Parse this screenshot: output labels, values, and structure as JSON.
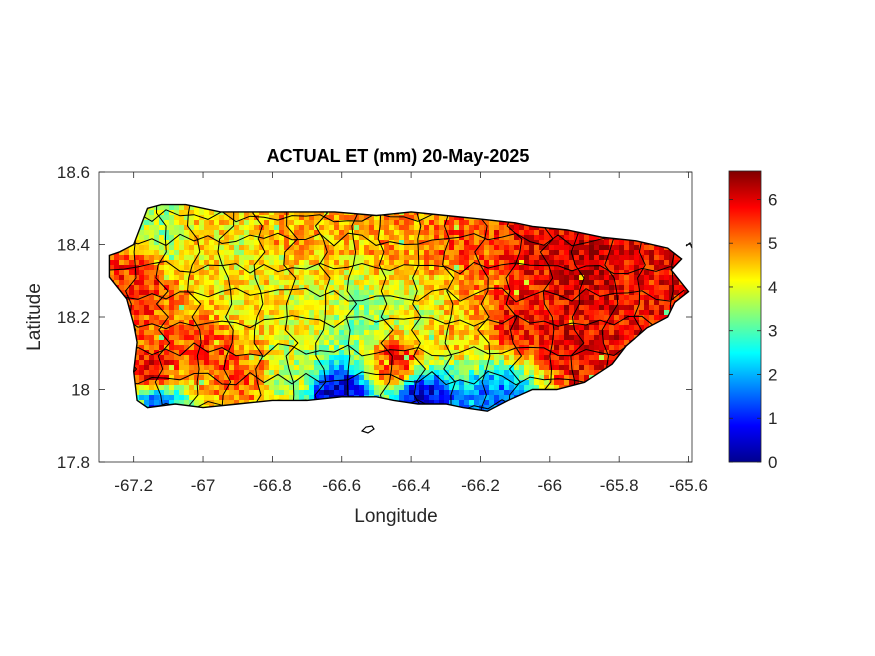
{
  "chart_data": {
    "type": "heatmap",
    "title": "ACTUAL ET (mm) 20-May-2025",
    "xlabel": "Longitude",
    "ylabel": "Latitude",
    "xlim": [
      -67.3,
      -65.59
    ],
    "ylim": [
      17.8,
      18.6
    ],
    "x_ticks": [
      -67.2,
      -67,
      -66.8,
      -66.6,
      -66.4,
      -66.2,
      -66,
      -65.8,
      -65.6
    ],
    "x_tick_labels": [
      "-67.2",
      "-67",
      "-66.8",
      "-66.6",
      "-66.4",
      "-66.2",
      "-66",
      "-65.8",
      "-65.6"
    ],
    "y_ticks": [
      17.8,
      18,
      18.2,
      18.4,
      18.6
    ],
    "y_tick_labels": [
      "17.8",
      "18",
      "18.2",
      "18.4",
      "18.6"
    ],
    "colorbar": {
      "colormap": "jet",
      "range": [
        0,
        6.65
      ],
      "ticks": [
        0,
        1,
        2,
        3,
        4,
        5,
        6
      ],
      "tick_labels": [
        "0",
        "1",
        "2",
        "3",
        "4",
        "5",
        "6"
      ]
    },
    "region": "Puerto Rico",
    "outline": [
      [
        -67.27,
        18.37
      ],
      [
        -67.24,
        18.38
      ],
      [
        -67.2,
        18.4
      ],
      [
        -67.18,
        18.45
      ],
      [
        -67.16,
        18.5
      ],
      [
        -67.12,
        18.51
      ],
      [
        -67.05,
        18.51
      ],
      [
        -66.95,
        18.49
      ],
      [
        -66.85,
        18.49
      ],
      [
        -66.75,
        18.49
      ],
      [
        -66.62,
        18.49
      ],
      [
        -66.5,
        18.48
      ],
      [
        -66.4,
        18.49
      ],
      [
        -66.3,
        18.48
      ],
      [
        -66.2,
        18.47
      ],
      [
        -66.1,
        18.46
      ],
      [
        -66.05,
        18.45
      ],
      [
        -65.95,
        18.44
      ],
      [
        -65.85,
        18.42
      ],
      [
        -65.75,
        18.41
      ],
      [
        -65.66,
        18.39
      ],
      [
        -65.62,
        18.36
      ],
      [
        -65.65,
        18.33
      ],
      [
        -65.6,
        18.27
      ],
      [
        -65.64,
        18.24
      ],
      [
        -65.66,
        18.2
      ],
      [
        -65.72,
        18.17
      ],
      [
        -65.78,
        18.12
      ],
      [
        -65.82,
        18.07
      ],
      [
        -65.9,
        18.02
      ],
      [
        -65.98,
        18.0
      ],
      [
        -66.05,
        18.0
      ],
      [
        -66.12,
        17.97
      ],
      [
        -66.18,
        17.94
      ],
      [
        -66.25,
        17.95
      ],
      [
        -66.3,
        17.96
      ],
      [
        -66.38,
        17.96
      ],
      [
        -66.45,
        17.97
      ],
      [
        -66.5,
        17.98
      ],
      [
        -66.6,
        17.98
      ],
      [
        -66.7,
        17.97
      ],
      [
        -66.8,
        17.97
      ],
      [
        -66.9,
        17.96
      ],
      [
        -67.0,
        17.95
      ],
      [
        -67.08,
        17.96
      ],
      [
        -67.16,
        17.95
      ],
      [
        -67.19,
        17.97
      ],
      [
        -67.2,
        18.05
      ],
      [
        -67.19,
        18.13
      ],
      [
        -67.2,
        18.18
      ],
      [
        -67.22,
        18.25
      ],
      [
        -67.27,
        18.31
      ]
    ],
    "et_field_samples": [
      {
        "lon": -67.2,
        "lat": 18.3,
        "et": 5.6
      },
      {
        "lon": -67.12,
        "lat": 18.45,
        "et": 3.6
      },
      {
        "lon": -67.0,
        "lat": 18.44,
        "et": 4.4
      },
      {
        "lon": -66.9,
        "lat": 18.42,
        "et": 4.0
      },
      {
        "lon": -66.8,
        "lat": 18.45,
        "et": 4.8
      },
      {
        "lon": -66.65,
        "lat": 18.45,
        "et": 4.6
      },
      {
        "lon": -66.45,
        "lat": 18.42,
        "et": 4.8
      },
      {
        "lon": -66.25,
        "lat": 18.42,
        "et": 5.3
      },
      {
        "lon": -66.05,
        "lat": 18.4,
        "et": 5.8
      },
      {
        "lon": -65.9,
        "lat": 18.35,
        "et": 6.2
      },
      {
        "lon": -65.75,
        "lat": 18.33,
        "et": 5.8
      },
      {
        "lon": -67.15,
        "lat": 18.05,
        "et": 5.9
      },
      {
        "lon": -67.0,
        "lat": 18.12,
        "et": 5.4
      },
      {
        "lon": -66.9,
        "lat": 18.25,
        "et": 4.2
      },
      {
        "lon": -66.7,
        "lat": 18.2,
        "et": 4.0
      },
      {
        "lon": -66.55,
        "lat": 18.2,
        "et": 3.4
      },
      {
        "lon": -66.4,
        "lat": 18.22,
        "et": 4.0
      },
      {
        "lon": -66.25,
        "lat": 18.18,
        "et": 4.6
      },
      {
        "lon": -66.1,
        "lat": 18.2,
        "et": 5.8
      },
      {
        "lon": -65.95,
        "lat": 18.15,
        "et": 6.0
      },
      {
        "lon": -65.85,
        "lat": 18.1,
        "et": 5.9
      },
      {
        "lon": -66.9,
        "lat": 18.05,
        "et": 5.2
      },
      {
        "lon": -66.75,
        "lat": 18.05,
        "et": 3.8
      },
      {
        "lon": -66.45,
        "lat": 18.08,
        "et": 5.6
      },
      {
        "lon": -66.62,
        "lat": 17.99,
        "et": 0.4
      },
      {
        "lon": -66.38,
        "lat": 17.98,
        "et": 0.5
      },
      {
        "lon": -66.15,
        "lat": 17.98,
        "et": 1.6
      },
      {
        "lon": -67.14,
        "lat": 17.97,
        "et": 1.5
      }
    ]
  }
}
